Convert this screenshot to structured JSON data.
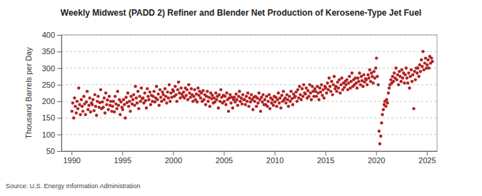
{
  "chart_data": {
    "type": "scatter",
    "title": "Weekly Midwest (PADD 2) Refiner and Blender Net Production of Kerosene-Type Jet Fuel",
    "y_label": "Thousand Barrels per Day",
    "annotations": [
      "Source: U.S. Energy Information Administration"
    ],
    "color": "#b22222",
    "marker": "circle",
    "grid": true,
    "xlim": [
      1989,
      2026
    ],
    "xticks": [
      1990,
      1995,
      2000,
      2005,
      2010,
      2015,
      2020,
      2025
    ],
    "ylim": [
      50,
      400
    ],
    "yticks": [
      50,
      100,
      150,
      200,
      250,
      300,
      350,
      400
    ],
    "x": [
      1990.04,
      1990.12,
      1990.21,
      1990.29,
      1990.37,
      1990.46,
      1990.54,
      1990.62,
      1990.71,
      1990.79,
      1990.87,
      1990.96,
      1991.04,
      1991.12,
      1991.21,
      1991.29,
      1991.37,
      1991.46,
      1991.54,
      1991.62,
      1991.71,
      1991.79,
      1991.87,
      1991.96,
      1992.04,
      1992.12,
      1992.21,
      1992.29,
      1992.37,
      1992.46,
      1992.54,
      1992.62,
      1992.71,
      1992.79,
      1992.87,
      1992.96,
      1993.04,
      1993.12,
      1993.21,
      1993.29,
      1993.37,
      1993.46,
      1993.54,
      1993.62,
      1993.71,
      1993.79,
      1993.87,
      1993.96,
      1994.04,
      1994.12,
      1994.21,
      1994.29,
      1994.37,
      1994.46,
      1994.54,
      1994.62,
      1994.71,
      1994.79,
      1994.87,
      1994.96,
      1995.04,
      1995.12,
      1995.21,
      1995.29,
      1995.37,
      1995.46,
      1995.54,
      1995.62,
      1995.71,
      1995.79,
      1995.87,
      1995.96,
      1996.04,
      1996.12,
      1996.21,
      1996.29,
      1996.37,
      1996.46,
      1996.54,
      1996.62,
      1996.71,
      1996.79,
      1996.87,
      1996.96,
      1997.04,
      1997.12,
      1997.21,
      1997.29,
      1997.37,
      1997.46,
      1997.54,
      1997.62,
      1997.71,
      1997.79,
      1997.87,
      1997.96,
      1998.04,
      1998.12,
      1998.21,
      1998.29,
      1998.37,
      1998.46,
      1998.54,
      1998.62,
      1998.71,
      1998.79,
      1998.87,
      1998.96,
      1999.04,
      1999.12,
      1999.21,
      1999.29,
      1999.37,
      1999.46,
      1999.54,
      1999.62,
      1999.71,
      1999.79,
      1999.87,
      1999.96,
      2000.04,
      2000.12,
      2000.21,
      2000.29,
      2000.37,
      2000.46,
      2000.54,
      2000.62,
      2000.71,
      2000.79,
      2000.87,
      2000.96,
      2001.04,
      2001.12,
      2001.21,
      2001.29,
      2001.37,
      2001.46,
      2001.54,
      2001.62,
      2001.71,
      2001.79,
      2001.87,
      2001.96,
      2002.04,
      2002.12,
      2002.21,
      2002.29,
      2002.37,
      2002.46,
      2002.54,
      2002.62,
      2002.71,
      2002.79,
      2002.87,
      2002.96,
      2003.04,
      2003.12,
      2003.21,
      2003.29,
      2003.37,
      2003.46,
      2003.54,
      2003.62,
      2003.71,
      2003.79,
      2003.87,
      2003.96,
      2004.04,
      2004.12,
      2004.21,
      2004.29,
      2004.37,
      2004.46,
      2004.54,
      2004.62,
      2004.71,
      2004.79,
      2004.87,
      2004.96,
      2005.04,
      2005.12,
      2005.21,
      2005.29,
      2005.37,
      2005.46,
      2005.54,
      2005.62,
      2005.71,
      2005.79,
      2005.87,
      2005.96,
      2006.04,
      2006.12,
      2006.21,
      2006.29,
      2006.37,
      2006.46,
      2006.54,
      2006.62,
      2006.71,
      2006.79,
      2006.87,
      2006.96,
      2007.04,
      2007.12,
      2007.21,
      2007.29,
      2007.37,
      2007.46,
      2007.54,
      2007.62,
      2007.71,
      2007.79,
      2007.87,
      2007.96,
      2008.04,
      2008.12,
      2008.21,
      2008.29,
      2008.37,
      2008.46,
      2008.54,
      2008.62,
      2008.71,
      2008.79,
      2008.87,
      2008.96,
      2009.04,
      2009.12,
      2009.21,
      2009.29,
      2009.37,
      2009.46,
      2009.54,
      2009.62,
      2009.71,
      2009.79,
      2009.87,
      2009.96,
      2010.04,
      2010.12,
      2010.21,
      2010.29,
      2010.37,
      2010.46,
      2010.54,
      2010.62,
      2010.71,
      2010.79,
      2010.87,
      2010.96,
      2011.04,
      2011.12,
      2011.21,
      2011.29,
      2011.37,
      2011.46,
      2011.54,
      2011.62,
      2011.71,
      2011.79,
      2011.87,
      2011.96,
      2012.04,
      2012.12,
      2012.21,
      2012.29,
      2012.37,
      2012.46,
      2012.54,
      2012.62,
      2012.71,
      2012.79,
      2012.87,
      2012.96,
      2013.04,
      2013.12,
      2013.21,
      2013.29,
      2013.37,
      2013.46,
      2013.54,
      2013.62,
      2013.71,
      2013.79,
      2013.87,
      2013.96,
      2014.04,
      2014.12,
      2014.21,
      2014.29,
      2014.37,
      2014.46,
      2014.54,
      2014.62,
      2014.71,
      2014.79,
      2014.87,
      2014.96,
      2015.04,
      2015.12,
      2015.21,
      2015.29,
      2015.37,
      2015.46,
      2015.54,
      2015.62,
      2015.71,
      2015.79,
      2015.87,
      2015.96,
      2016.04,
      2016.12,
      2016.21,
      2016.29,
      2016.37,
      2016.46,
      2016.54,
      2016.62,
      2016.71,
      2016.79,
      2016.87,
      2016.96,
      2017.04,
      2017.12,
      2017.21,
      2017.29,
      2017.37,
      2017.46,
      2017.54,
      2017.62,
      2017.71,
      2017.79,
      2017.87,
      2017.96,
      2018.04,
      2018.12,
      2018.21,
      2018.29,
      2018.37,
      2018.46,
      2018.54,
      2018.62,
      2018.71,
      2018.79,
      2018.87,
      2018.96,
      2019.04,
      2019.12,
      2019.21,
      2019.29,
      2019.37,
      2019.46,
      2019.54,
      2019.62,
      2019.71,
      2019.79,
      2019.87,
      2019.96,
      2020.04,
      2020.12,
      2020.21,
      2020.29,
      2020.37,
      2020.46,
      2020.54,
      2020.62,
      2020.71,
      2020.79,
      2020.87,
      2020.96,
      2021.04,
      2021.12,
      2021.21,
      2021.29,
      2021.37,
      2021.46,
      2021.54,
      2021.62,
      2021.71,
      2021.79,
      2021.87,
      2021.96,
      2022.04,
      2022.12,
      2022.21,
      2022.29,
      2022.37,
      2022.46,
      2022.54,
      2022.62,
      2022.71,
      2022.79,
      2022.87,
      2022.96,
      2023.04,
      2023.12,
      2023.21,
      2023.29,
      2023.37,
      2023.46,
      2023.54,
      2023.62,
      2023.71,
      2023.79,
      2023.87,
      2023.96,
      2024.04,
      2024.12,
      2024.21,
      2024.29,
      2024.37,
      2024.46,
      2024.54,
      2024.62,
      2024.71,
      2024.79,
      2024.87,
      2024.96,
      2025.04,
      2025.12,
      2025.21,
      2025.29,
      2025.37,
      2025.46,
      2025.54
    ],
    "values": [
      170,
      195,
      150,
      210,
      185,
      165,
      200,
      178,
      240,
      190,
      160,
      205,
      185,
      170,
      215,
      192,
      160,
      198,
      230,
      175,
      188,
      210,
      168,
      195,
      190,
      205,
      172,
      220,
      185,
      158,
      200,
      215,
      182,
      196,
      235,
      178,
      198,
      182,
      210,
      165,
      225,
      190,
      204,
      175,
      215,
      188,
      200,
      170,
      185,
      200,
      168,
      215,
      192,
      178,
      230,
      188,
      205,
      160,
      198,
      182,
      175,
      205,
      190,
      150,
      212,
      196,
      225,
      185,
      200,
      170,
      215,
      192,
      205,
      220,
      188,
      245,
      210,
      195,
      230,
      178,
      215,
      200,
      240,
      208,
      210,
      195,
      225,
      202,
      180,
      238,
      215,
      205,
      228,
      190,
      218,
      200,
      215,
      230,
      198,
      210,
      245,
      205,
      222,
      188,
      235,
      212,
      200,
      228,
      220,
      205,
      238,
      215,
      195,
      228,
      210,
      250,
      200,
      225,
      212,
      235,
      230,
      215,
      245,
      220,
      200,
      235,
      258,
      225,
      210,
      240,
      222,
      215,
      228,
      210,
      240,
      218,
      235,
      205,
      250,
      225,
      212,
      238,
      220,
      200,
      215,
      235,
      205,
      222,
      198,
      240,
      218,
      230,
      210,
      225,
      200,
      232,
      205,
      220,
      190,
      215,
      230,
      200,
      212,
      185,
      225,
      208,
      218,
      195,
      210,
      198,
      225,
      205,
      215,
      180,
      220,
      200,
      235,
      212,
      195,
      218,
      200,
      215,
      190,
      225,
      205,
      170,
      210,
      220,
      195,
      212,
      180,
      205,
      212,
      198,
      222,
      205,
      188,
      215,
      230,
      200,
      210,
      192,
      220,
      205,
      205,
      190,
      215,
      200,
      225,
      185,
      210,
      198,
      220,
      205,
      175,
      212,
      200,
      215,
      185,
      210,
      195,
      225,
      205,
      170,
      212,
      198,
      220,
      190,
      205,
      190,
      215,
      185,
      200,
      220,
      178,
      210,
      195,
      205,
      188,
      215,
      198,
      212,
      185,
      205,
      225,
      195,
      210,
      180,
      218,
      200,
      230,
      205,
      210,
      195,
      220,
      205,
      185,
      215,
      200,
      230,
      208,
      190,
      222,
      212,
      215,
      228,
      200,
      235,
      210,
      245,
      220,
      205,
      238,
      215,
      250,
      225,
      222,
      240,
      210,
      232,
      215,
      250,
      225,
      205,
      245,
      230,
      215,
      238,
      230,
      215,
      245,
      225,
      205,
      240,
      228,
      250,
      218,
      235,
      210,
      245,
      240,
      225,
      255,
      235,
      270,
      245,
      230,
      260,
      220,
      250,
      275,
      238,
      245,
      230,
      258,
      240,
      265,
      225,
      250,
      270,
      235,
      255,
      242,
      260,
      250,
      265,
      235,
      255,
      275,
      240,
      260,
      285,
      245,
      265,
      250,
      270,
      255,
      240,
      270,
      260,
      285,
      250,
      275,
      262,
      245,
      280,
      258,
      268,
      265,
      250,
      280,
      270,
      295,
      260,
      285,
      275,
      255,
      290,
      270,
      300,
      330,
      275,
      250,
      110,
      72,
      95,
      135,
      160,
      175,
      190,
      200,
      185,
      205,
      195,
      225,
      240,
      250,
      265,
      255,
      275,
      260,
      285,
      270,
      300,
      265,
      280,
      250,
      290,
      275,
      260,
      295,
      270,
      285,
      255,
      280,
      300,
      270,
      255,
      285,
      240,
      275,
      295,
      260,
      280,
      178,
      290,
      265,
      300,
      285,
      300,
      275,
      310,
      290,
      325,
      305,
      350,
      295,
      315,
      330,
      300,
      310,
      325,
      300,
      335,
      315,
      330,
      320
    ]
  }
}
